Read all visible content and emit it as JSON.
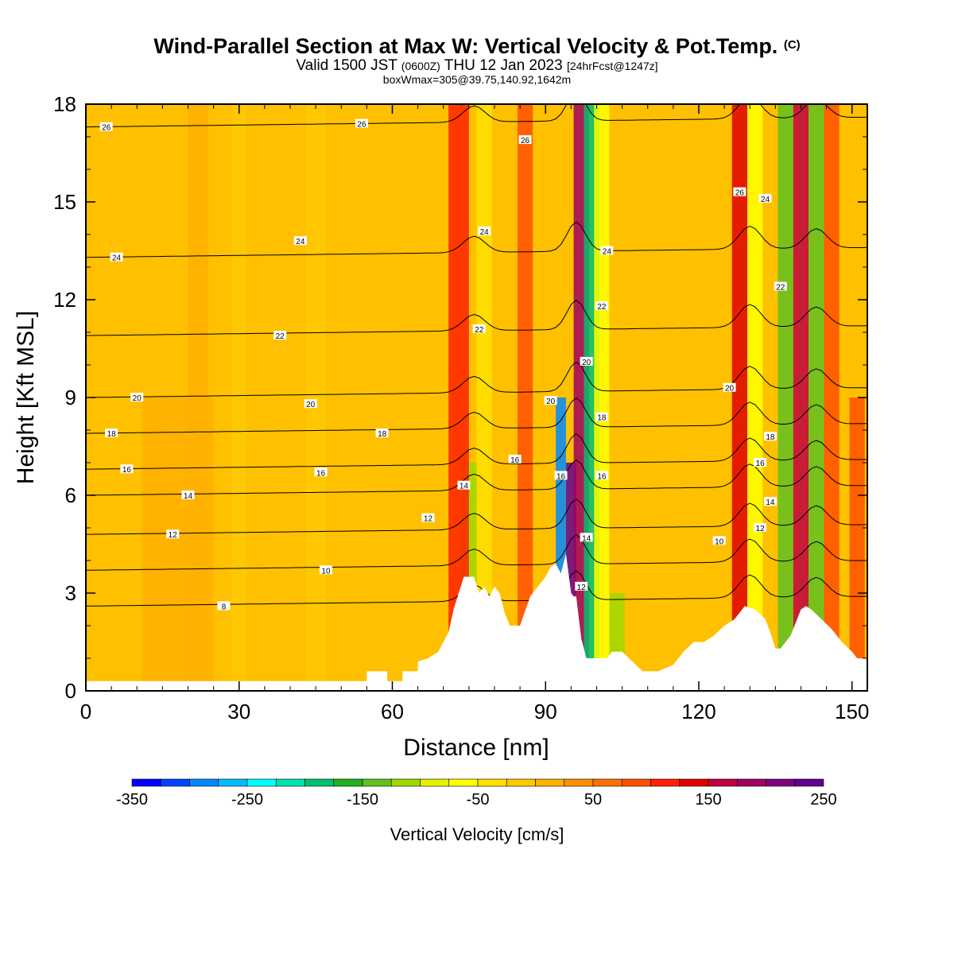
{
  "title": {
    "main": "Wind-Parallel Section at Max W: Vertical Velocity & Pot.Temp.",
    "copyright": "(C)",
    "valid_prefix": "Valid 1500 JST",
    "valid_utc": "(0600Z)",
    "valid_date": "THU 12 Jan 2023",
    "forecast": "[24hrFcst@1247z]",
    "boxinfo": "boxWmax=305@39.75,140.92,1642m"
  },
  "colors": {
    "colorbar": [
      "#0000ff",
      "#0044ff",
      "#0088ff",
      "#00bbff",
      "#00ffff",
      "#00e0b0",
      "#00c070",
      "#20b020",
      "#60c020",
      "#a0d800",
      "#e8f000",
      "#ffff00",
      "#ffe000",
      "#ffc800",
      "#ffb000",
      "#ff9000",
      "#ff7000",
      "#ff5000",
      "#ff2000",
      "#e00000",
      "#c00040",
      "#a00060",
      "#800080",
      "#600090"
    ],
    "background_field": "#ffc000",
    "terrain": "#ffffff",
    "contour": "#000000"
  },
  "chart_data": {
    "type": "contour",
    "xlabel": "Distance [nm]",
    "ylabel": "Height [Kft MSL]",
    "xlim": [
      0,
      153
    ],
    "ylim": [
      0,
      18
    ],
    "xticks": [
      0,
      30,
      60,
      90,
      120,
      150
    ],
    "yticks": [
      0,
      3,
      6,
      9,
      12,
      15,
      18
    ],
    "colorbar": {
      "label": "Vertical Velocity [cm/s]",
      "ticks": [
        -350,
        -250,
        -150,
        -50,
        50,
        150,
        250
      ],
      "range": [
        -350,
        250
      ],
      "step": 25
    },
    "terrain": [
      [
        0,
        0.3
      ],
      [
        2,
        0.3
      ],
      [
        55,
        0.3
      ],
      [
        55,
        0.6
      ],
      [
        59,
        0.6
      ],
      [
        59,
        0.3
      ],
      [
        62,
        0.3
      ],
      [
        62,
        0.6
      ],
      [
        65,
        0.6
      ],
      [
        65,
        0.9
      ],
      [
        67,
        1.0
      ],
      [
        69,
        1.2
      ],
      [
        71,
        1.8
      ],
      [
        72,
        2.5
      ],
      [
        73,
        3.0
      ],
      [
        74,
        3.5
      ],
      [
        76,
        3.5
      ],
      [
        77,
        3.0
      ],
      [
        78,
        3.2
      ],
      [
        79,
        2.9
      ],
      [
        80,
        3.2
      ],
      [
        81,
        3.0
      ],
      [
        82,
        2.4
      ],
      [
        83,
        2.0
      ],
      [
        85,
        2.0
      ],
      [
        87,
        2.9
      ],
      [
        89,
        3.3
      ],
      [
        90,
        3.5
      ],
      [
        91,
        3.8
      ],
      [
        92,
        3.9
      ],
      [
        93,
        3.6
      ],
      [
        94,
        4.2
      ],
      [
        95,
        3.0
      ],
      [
        95.5,
        2.9
      ],
      [
        96,
        2.9
      ],
      [
        97,
        1.6
      ],
      [
        98,
        1.0
      ],
      [
        100,
        1.0
      ],
      [
        102,
        1.0
      ],
      [
        103,
        1.2
      ],
      [
        105,
        1.2
      ],
      [
        107,
        0.9
      ],
      [
        109,
        0.6
      ],
      [
        112,
        0.6
      ],
      [
        115,
        0.8
      ],
      [
        116,
        1.0
      ],
      [
        117,
        1.2
      ],
      [
        119,
        1.5
      ],
      [
        121,
        1.5
      ],
      [
        123,
        1.7
      ],
      [
        125,
        2.0
      ],
      [
        127,
        2.2
      ],
      [
        129,
        2.6
      ],
      [
        131,
        2.5
      ],
      [
        133,
        2.2
      ],
      [
        134,
        1.8
      ],
      [
        135,
        1.3
      ],
      [
        136,
        1.3
      ],
      [
        138,
        1.7
      ],
      [
        140,
        2.5
      ],
      [
        141,
        2.6
      ],
      [
        142,
        2.5
      ],
      [
        144,
        2.2
      ],
      [
        146,
        1.9
      ],
      [
        148,
        1.5
      ],
      [
        150,
        1.2
      ],
      [
        151,
        1.0
      ],
      [
        153,
        1.0
      ]
    ],
    "theta_contours": [
      {
        "level": 8,
        "z": 2.6,
        "labels": [
          [
            27,
            2.6
          ]
        ]
      },
      {
        "level": 10,
        "z": 3.7,
        "labels": [
          [
            47,
            3.7
          ],
          [
            124,
            4.6
          ]
        ]
      },
      {
        "level": 12,
        "z": 4.8,
        "labels": [
          [
            17,
            4.8
          ],
          [
            67,
            5.3
          ],
          [
            97,
            3.2
          ],
          [
            132,
            5.0
          ]
        ]
      },
      {
        "level": 14,
        "z": 6.0,
        "labels": [
          [
            20,
            6.0
          ],
          [
            74,
            6.3
          ],
          [
            98,
            4.7
          ],
          [
            134,
            5.8
          ]
        ]
      },
      {
        "level": 16,
        "z": 6.8,
        "labels": [
          [
            8,
            6.8
          ],
          [
            46,
            6.7
          ],
          [
            84,
            7.1
          ],
          [
            93,
            6.6
          ],
          [
            101,
            6.6
          ],
          [
            132,
            7.0
          ]
        ]
      },
      {
        "level": 18,
        "z": 7.9,
        "labels": [
          [
            5,
            7.9
          ],
          [
            58,
            7.9
          ],
          [
            101,
            8.4
          ],
          [
            134,
            7.8
          ]
        ]
      },
      {
        "level": 20,
        "z": 9.0,
        "labels": [
          [
            10,
            9.0
          ],
          [
            44,
            8.8
          ],
          [
            91,
            8.9
          ],
          [
            98,
            10.1
          ],
          [
            126,
            9.3
          ]
        ]
      },
      {
        "level": 22,
        "z": 10.9,
        "labels": [
          [
            38,
            10.9
          ],
          [
            77,
            11.1
          ],
          [
            101,
            11.8
          ],
          [
            136,
            12.4
          ]
        ]
      },
      {
        "level": 24,
        "z": 13.3,
        "labels": [
          [
            6,
            13.3
          ],
          [
            42,
            13.8
          ],
          [
            78,
            14.1
          ],
          [
            102,
            13.5
          ],
          [
            133,
            15.1
          ]
        ]
      },
      {
        "level": 26,
        "z": 17.3,
        "labels": [
          [
            4,
            17.3
          ],
          [
            54,
            17.4
          ],
          [
            86,
            16.9
          ],
          [
            128,
            15.3
          ]
        ]
      }
    ],
    "vertical_velocity_features": [
      {
        "x": 18,
        "w": 14,
        "value": 20,
        "zmax": 9
      },
      {
        "x": 22,
        "w": 4,
        "value": 0,
        "zmax": 18
      },
      {
        "x": 30,
        "w": 3,
        "value": -25,
        "zmax": 18
      },
      {
        "x": 45,
        "w": 4,
        "value": -20,
        "zmax": 18
      },
      {
        "x": 75,
        "w": 3,
        "value": -110,
        "zmax": 7
      },
      {
        "x": 73,
        "w": 4,
        "value": 110,
        "zmax": 18
      },
      {
        "x": 78,
        "w": 3,
        "value": -40,
        "zmax": 18
      },
      {
        "x": 86,
        "w": 3,
        "value": 90,
        "zmax": 18
      },
      {
        "x": 93,
        "w": 2,
        "value": -300,
        "zmax": 9
      },
      {
        "x": 95,
        "w": 2,
        "value": 250,
        "zmax": 7
      },
      {
        "x": 97,
        "w": 3,
        "value": 180,
        "zmax": 18
      },
      {
        "x": 99,
        "w": 3,
        "value": -180,
        "zmax": 18
      },
      {
        "x": 101,
        "w": 3,
        "value": -60,
        "zmax": 18
      },
      {
        "x": 104,
        "w": 3,
        "value": -120,
        "zmax": 3
      },
      {
        "x": 128,
        "w": 3,
        "value": 140,
        "zmax": 18
      },
      {
        "x": 131,
        "w": 3,
        "value": -60,
        "zmax": 18
      },
      {
        "x": 137,
        "w": 3,
        "value": -150,
        "zmax": 18
      },
      {
        "x": 140,
        "w": 3,
        "value": 170,
        "zmax": 18
      },
      {
        "x": 143,
        "w": 3,
        "value": -150,
        "zmax": 18
      },
      {
        "x": 146,
        "w": 3,
        "value": 80,
        "zmax": 18
      },
      {
        "x": 151,
        "w": 3,
        "value": 90,
        "zmax": 9
      }
    ]
  }
}
